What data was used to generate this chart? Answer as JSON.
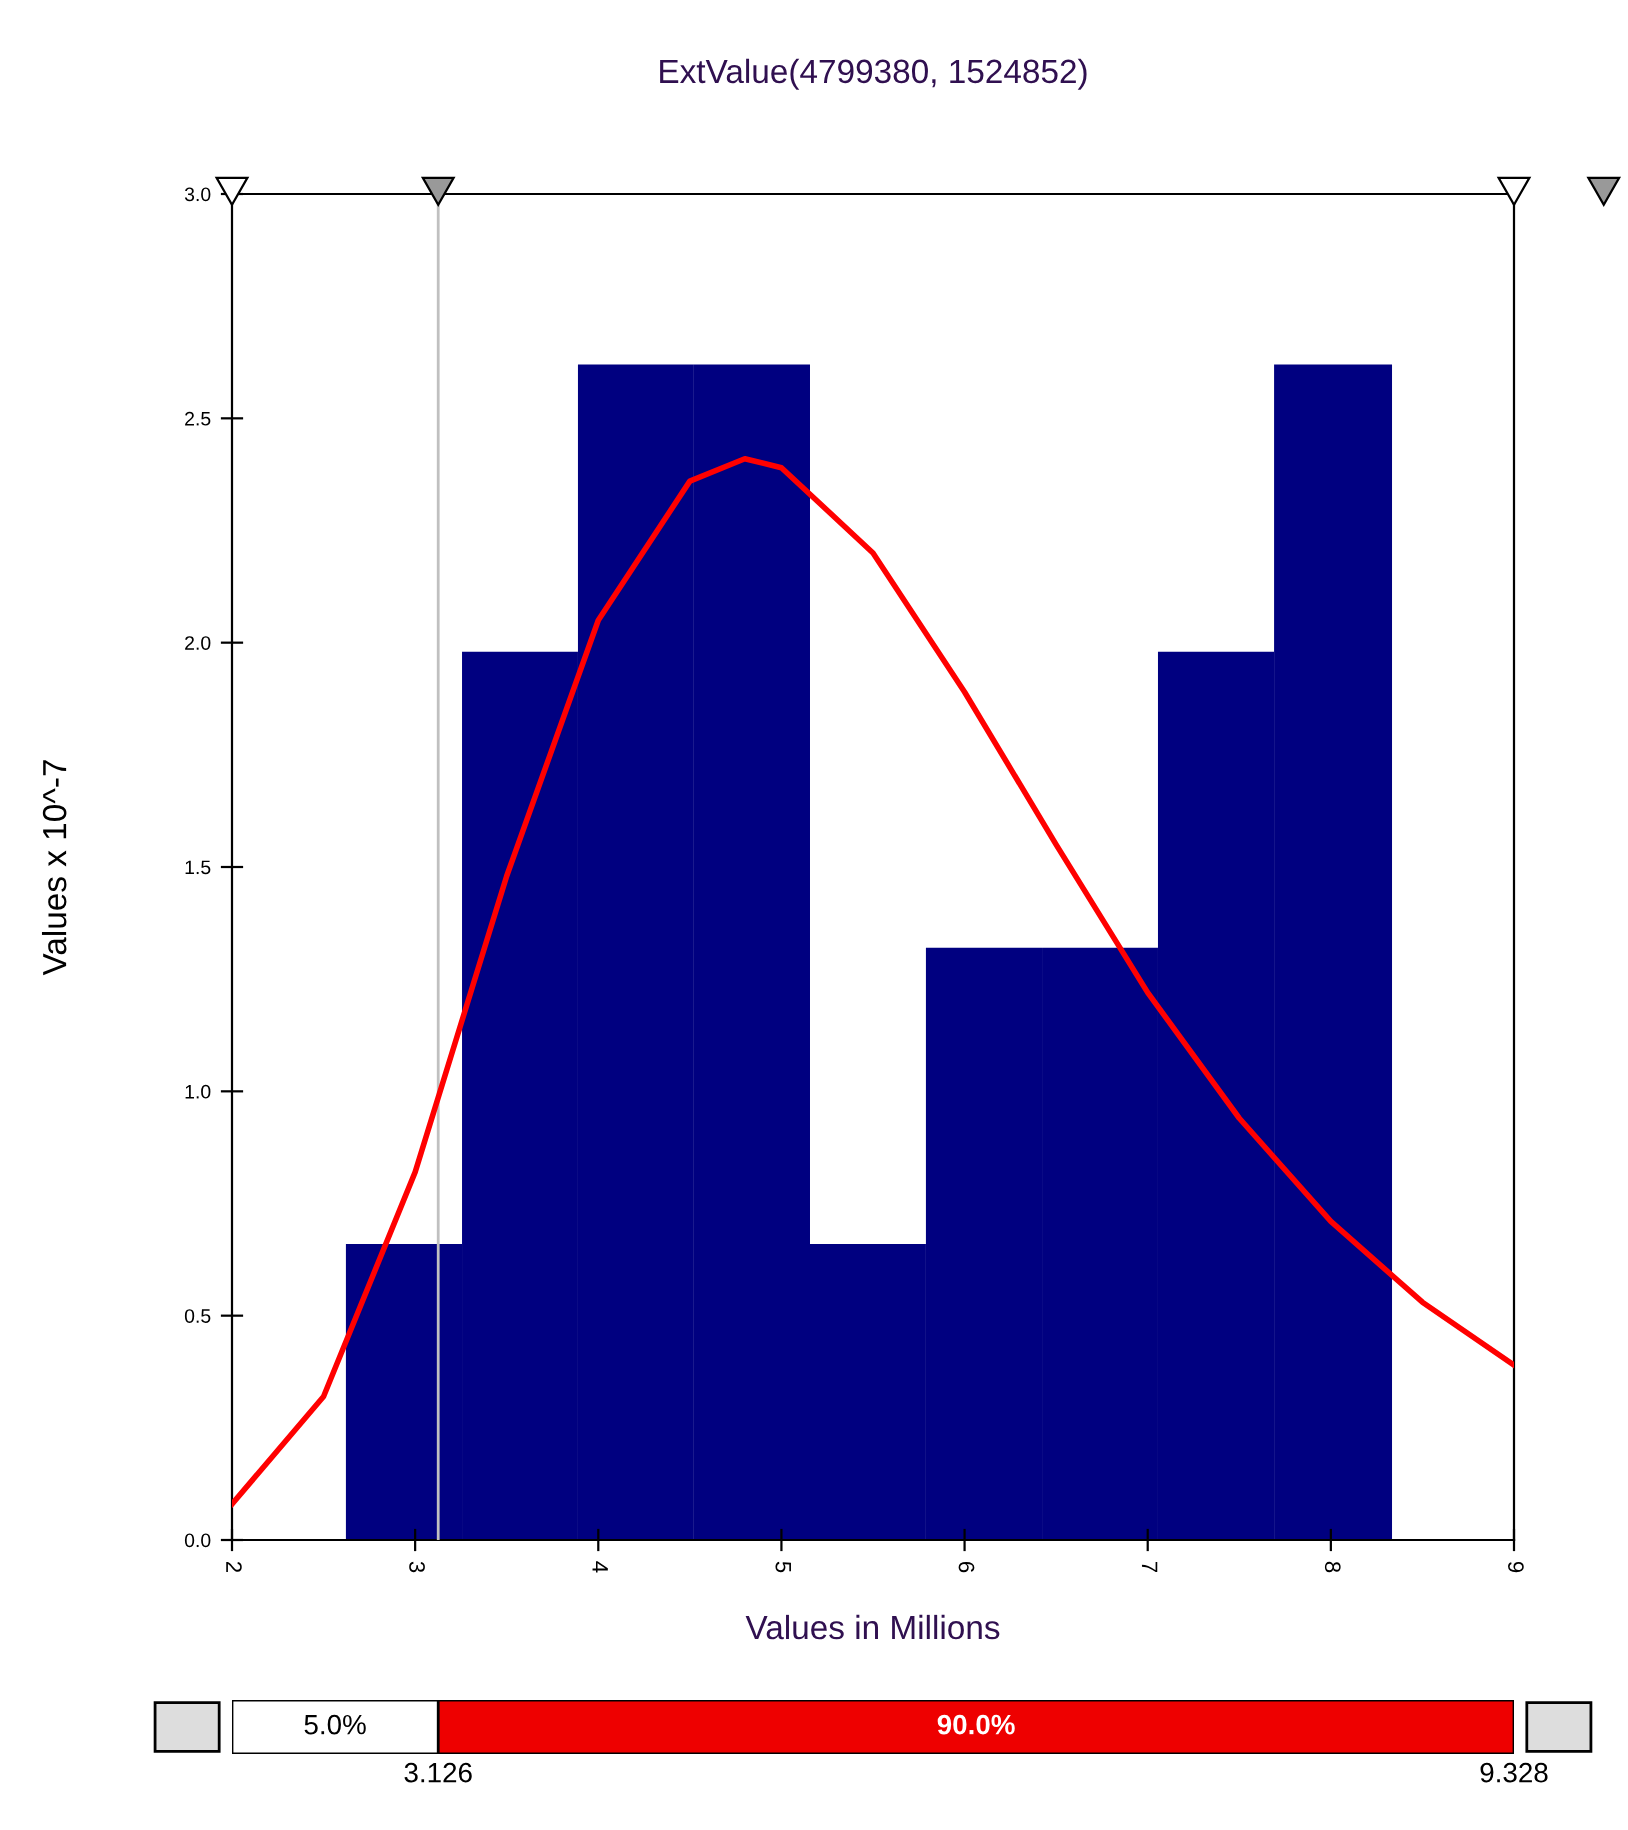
{
  "chart_data": {
    "type": "histogram",
    "title": "ExtValue(4799380, 1524852)",
    "xlabel": "Values in Millions",
    "ylabel": "Values x 10^-7",
    "bins": [
      2.622,
      3.256,
      3.889,
      4.522,
      5.156,
      5.789,
      6.423,
      7.056,
      7.69,
      8.334
    ],
    "values": [
      0.66,
      1.98,
      2.62,
      2.62,
      0.66,
      1.32,
      1.32,
      1.98,
      2.62
    ],
    "color": "#000080",
    "series": [
      {
        "type": "line",
        "color": "#ff0000",
        "x": [
          2,
          2.5,
          3,
          3.5,
          4,
          4.5,
          4.8,
          5,
          5.5,
          6,
          6.5,
          7,
          7.5,
          8,
          8.5,
          9
        ],
        "values": [
          0.08,
          0.32,
          0.82,
          1.48,
          2.05,
          2.36,
          2.41,
          2.39,
          2.2,
          1.89,
          1.55,
          1.22,
          0.94,
          0.71,
          0.53,
          0.39
        ]
      }
    ],
    "ref_lines": [
      {
        "axis": "x",
        "value": 3.126,
        "color": "#c0c0c0"
      }
    ],
    "xlim": [
      2,
      9
    ],
    "xticks": [
      2,
      3,
      4,
      5,
      6,
      7,
      8,
      9
    ],
    "ylim": [
      0,
      3.0
    ],
    "yticks": [
      {
        "value": 0,
        "label": "0.0"
      },
      0.5,
      {
        "value": 1,
        "label": "1.0"
      },
      1.5,
      {
        "value": 2,
        "label": "2.0"
      },
      2.5,
      {
        "value": 3,
        "label": "3.0"
      }
    ],
    "grid": false,
    "legend": false,
    "annotations": [
      "5.0%",
      "90.0%",
      "3.126",
      "9.328"
    ]
  }
}
